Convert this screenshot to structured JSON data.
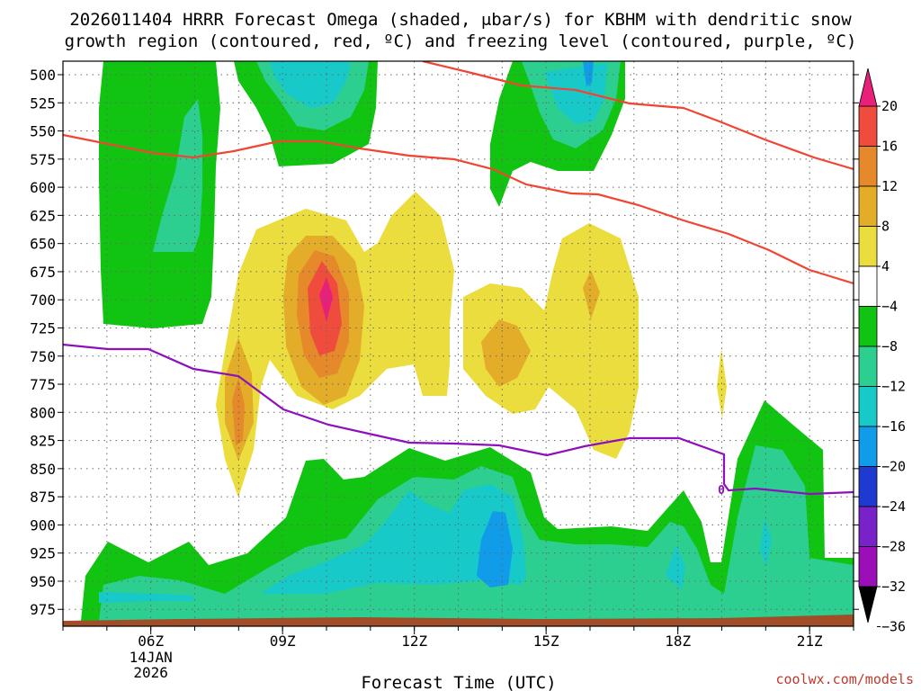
{
  "chart_data": {
    "type": "time-height cross section (filled contour)",
    "title_lines": [
      "2026011404 HRRR Forecast Omega (shaded, μbar/s) for KBHM with dendritic snow",
      "growth region (contoured, red, ºC) and freezing level (contoured, purple, ºC)"
    ],
    "model": "HRRR",
    "init": "2026011404",
    "station": "KBHM",
    "xlabel": "Forecast Time (UTC)",
    "x_ticks": [
      {
        "label": "06Z",
        "hour": 6,
        "sub": [
          "14JAN",
          "2026"
        ]
      },
      {
        "label": "09Z",
        "hour": 9,
        "sub": []
      },
      {
        "label": "12Z",
        "hour": 12,
        "sub": []
      },
      {
        "label": "15Z",
        "hour": 15,
        "sub": []
      },
      {
        "label": "18Z",
        "hour": 18,
        "sub": []
      },
      {
        "label": "21Z",
        "hour": 21,
        "sub": []
      }
    ],
    "xlim": [
      4,
      22
    ],
    "y_ticks": [
      500,
      525,
      550,
      575,
      600,
      625,
      650,
      675,
      700,
      725,
      750,
      775,
      800,
      825,
      850,
      875,
      900,
      925,
      950,
      975
    ],
    "ylim_hpa": [
      488,
      990
    ],
    "colorbar": {
      "labels": [
        "20",
        "16",
        "12",
        "8",
        "4",
        "−4",
        "−8",
        "−12",
        "−16",
        "−20",
        "−24",
        "−28",
        "−32",
        "−36"
      ],
      "colors": [
        "#e8207a",
        "#ef4c3e",
        "#e6892a",
        "#e3ad2a",
        "#ebdd3e",
        "#ffffff",
        "#12c412",
        "#2dcf90",
        "#17c9c9",
        "#109ce8",
        "#1e3ad0",
        "#7a22c9",
        "#9c0fb8",
        "#a0a0a0"
      ]
    },
    "freezing_level_label": "0",
    "contour_colors": {
      "dendritic": "#f24433",
      "freezing": "#8e0fbd",
      "terrain": "#a04d28"
    },
    "credit": "coolwx.com/models"
  }
}
